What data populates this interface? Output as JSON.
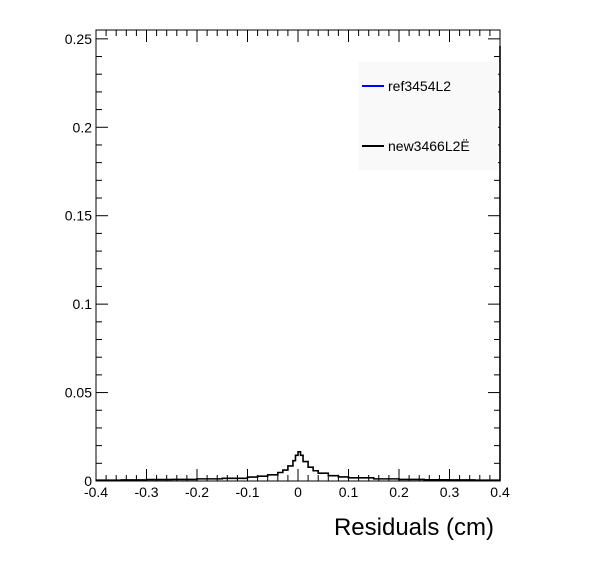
{
  "chart_data": {
    "type": "line",
    "title": "",
    "xlabel": "Residuals (cm)",
    "ylabel": "",
    "xlim": [
      -0.4,
      0.4
    ],
    "ylim": [
      0,
      0.255
    ],
    "grid": false,
    "legend_position": "top-right",
    "x_ticks": [
      "-0.4",
      "-0.3",
      "-0.2",
      "-0.1",
      "0",
      "0.1",
      "0.2",
      "0.3",
      "0.4"
    ],
    "y_ticks": [
      "0",
      "0.05",
      "0.1",
      "0.15",
      "0.2",
      "0.25"
    ],
    "series": [
      {
        "name": "ref3454L2",
        "color": "#0000ff",
        "x": [],
        "y": []
      },
      {
        "name": "new3466L2Ë",
        "color": "#000000",
        "x": [
          -0.4,
          -0.35,
          -0.3,
          -0.25,
          -0.2,
          -0.15,
          -0.1,
          -0.08,
          -0.06,
          -0.04,
          -0.03,
          -0.02,
          -0.01,
          -0.005,
          0,
          0.005,
          0.01,
          0.02,
          0.03,
          0.04,
          0.06,
          0.08,
          0.1,
          0.15,
          0.2,
          0.25,
          0.3,
          0.35,
          0.398,
          0.4
        ],
        "y": [
          0.0005,
          0.0006,
          0.0008,
          0.0009,
          0.0012,
          0.0015,
          0.0022,
          0.0027,
          0.0035,
          0.0048,
          0.0062,
          0.0085,
          0.0115,
          0.0145,
          0.0165,
          0.0145,
          0.011,
          0.0078,
          0.0058,
          0.0044,
          0.003,
          0.0023,
          0.0018,
          0.0012,
          0.0009,
          0.0007,
          0.0006,
          0.0005,
          0.0005,
          0.246
        ]
      }
    ]
  }
}
